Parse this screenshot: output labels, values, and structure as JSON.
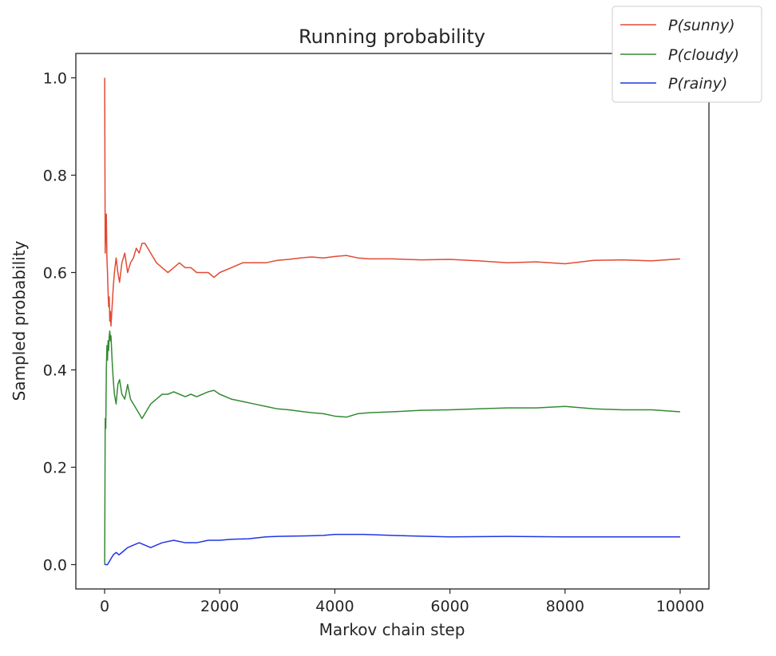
{
  "chart_data": {
    "type": "line",
    "title": "Running probability",
    "xlabel": "Markov chain step",
    "ylabel": "Sampled probability",
    "xlim": [
      -500,
      10500
    ],
    "ylim": [
      -0.05,
      1.05
    ],
    "xticks": [
      0,
      2000,
      4000,
      6000,
      8000,
      10000
    ],
    "xtick_labels": [
      "0",
      "2000",
      "4000",
      "6000",
      "8000",
      "10000"
    ],
    "yticks": [
      0.0,
      0.2,
      0.4,
      0.6,
      0.8,
      1.0
    ],
    "ytick_labels": [
      "0.0",
      "0.2",
      "0.4",
      "0.6",
      "0.8",
      "1.0"
    ],
    "grid": false,
    "legend_position": "top-right",
    "series": [
      {
        "name": "P(sunny)",
        "color": "#e24a33",
        "points": [
          [
            1,
            1.0
          ],
          [
            10,
            0.64
          ],
          [
            20,
            0.69
          ],
          [
            30,
            0.72
          ],
          [
            40,
            0.63
          ],
          [
            50,
            0.6
          ],
          [
            60,
            0.56
          ],
          [
            70,
            0.53
          ],
          [
            80,
            0.55
          ],
          [
            90,
            0.5
          ],
          [
            100,
            0.52
          ],
          [
            110,
            0.49
          ],
          [
            130,
            0.53
          ],
          [
            150,
            0.57
          ],
          [
            170,
            0.6
          ],
          [
            200,
            0.63
          ],
          [
            230,
            0.6
          ],
          [
            260,
            0.58
          ],
          [
            300,
            0.62
          ],
          [
            350,
            0.64
          ],
          [
            400,
            0.6
          ],
          [
            450,
            0.62
          ],
          [
            500,
            0.63
          ],
          [
            550,
            0.65
          ],
          [
            600,
            0.64
          ],
          [
            650,
            0.66
          ],
          [
            700,
            0.66
          ],
          [
            800,
            0.64
          ],
          [
            900,
            0.62
          ],
          [
            1000,
            0.61
          ],
          [
            1100,
            0.6
          ],
          [
            1200,
            0.61
          ],
          [
            1300,
            0.62
          ],
          [
            1400,
            0.61
          ],
          [
            1500,
            0.61
          ],
          [
            1600,
            0.6
          ],
          [
            1700,
            0.6
          ],
          [
            1800,
            0.6
          ],
          [
            1900,
            0.59
          ],
          [
            2000,
            0.6
          ],
          [
            2200,
            0.61
          ],
          [
            2400,
            0.62
          ],
          [
            2600,
            0.62
          ],
          [
            2800,
            0.62
          ],
          [
            3000,
            0.625
          ],
          [
            3200,
            0.627
          ],
          [
            3400,
            0.63
          ],
          [
            3600,
            0.632
          ],
          [
            3800,
            0.63
          ],
          [
            4000,
            0.633
          ],
          [
            4200,
            0.635
          ],
          [
            4400,
            0.63
          ],
          [
            4600,
            0.628
          ],
          [
            5000,
            0.628
          ],
          [
            5500,
            0.626
          ],
          [
            6000,
            0.627
          ],
          [
            6500,
            0.624
          ],
          [
            7000,
            0.62
          ],
          [
            7500,
            0.622
          ],
          [
            8000,
            0.618
          ],
          [
            8500,
            0.625
          ],
          [
            9000,
            0.626
          ],
          [
            9500,
            0.624
          ],
          [
            10000,
            0.628
          ]
        ]
      },
      {
        "name": "P(cloudy)",
        "color": "#348a34",
        "points": [
          [
            1,
            0.0
          ],
          [
            10,
            0.3
          ],
          [
            20,
            0.28
          ],
          [
            30,
            0.4
          ],
          [
            40,
            0.45
          ],
          [
            50,
            0.42
          ],
          [
            60,
            0.46
          ],
          [
            70,
            0.44
          ],
          [
            80,
            0.47
          ],
          [
            90,
            0.48
          ],
          [
            100,
            0.46
          ],
          [
            110,
            0.47
          ],
          [
            130,
            0.42
          ],
          [
            150,
            0.38
          ],
          [
            170,
            0.35
          ],
          [
            200,
            0.33
          ],
          [
            230,
            0.37
          ],
          [
            260,
            0.38
          ],
          [
            300,
            0.35
          ],
          [
            350,
            0.34
          ],
          [
            400,
            0.37
          ],
          [
            450,
            0.34
          ],
          [
            500,
            0.33
          ],
          [
            550,
            0.32
          ],
          [
            600,
            0.31
          ],
          [
            650,
            0.3
          ],
          [
            700,
            0.31
          ],
          [
            800,
            0.33
          ],
          [
            900,
            0.34
          ],
          [
            1000,
            0.35
          ],
          [
            1100,
            0.35
          ],
          [
            1200,
            0.355
          ],
          [
            1300,
            0.35
          ],
          [
            1400,
            0.345
          ],
          [
            1500,
            0.35
          ],
          [
            1600,
            0.345
          ],
          [
            1700,
            0.35
          ],
          [
            1800,
            0.355
          ],
          [
            1900,
            0.358
          ],
          [
            2000,
            0.35
          ],
          [
            2200,
            0.34
          ],
          [
            2400,
            0.335
          ],
          [
            2600,
            0.33
          ],
          [
            2800,
            0.325
          ],
          [
            3000,
            0.32
          ],
          [
            3200,
            0.318
          ],
          [
            3400,
            0.315
          ],
          [
            3600,
            0.312
          ],
          [
            3800,
            0.31
          ],
          [
            4000,
            0.305
          ],
          [
            4200,
            0.303
          ],
          [
            4400,
            0.31
          ],
          [
            4600,
            0.312
          ],
          [
            5000,
            0.314
          ],
          [
            5500,
            0.317
          ],
          [
            6000,
            0.318
          ],
          [
            6500,
            0.32
          ],
          [
            7000,
            0.322
          ],
          [
            7500,
            0.322
          ],
          [
            8000,
            0.325
          ],
          [
            8500,
            0.32
          ],
          [
            9000,
            0.318
          ],
          [
            9500,
            0.318
          ],
          [
            10000,
            0.314
          ]
        ]
      },
      {
        "name": "P(rainy)",
        "color": "#1f35e5",
        "points": [
          [
            1,
            0.0
          ],
          [
            50,
            0.0
          ],
          [
            100,
            0.01
          ],
          [
            150,
            0.02
          ],
          [
            200,
            0.025
          ],
          [
            250,
            0.02
          ],
          [
            300,
            0.025
          ],
          [
            400,
            0.035
          ],
          [
            500,
            0.04
          ],
          [
            600,
            0.045
          ],
          [
            700,
            0.04
          ],
          [
            800,
            0.035
          ],
          [
            900,
            0.04
          ],
          [
            1000,
            0.045
          ],
          [
            1200,
            0.05
          ],
          [
            1400,
            0.045
          ],
          [
            1600,
            0.045
          ],
          [
            1800,
            0.05
          ],
          [
            2000,
            0.05
          ],
          [
            2200,
            0.052
          ],
          [
            2500,
            0.053
          ],
          [
            2800,
            0.057
          ],
          [
            3000,
            0.058
          ],
          [
            3500,
            0.059
          ],
          [
            3800,
            0.06
          ],
          [
            4000,
            0.062
          ],
          [
            4500,
            0.062
          ],
          [
            5000,
            0.06
          ],
          [
            6000,
            0.057
          ],
          [
            7000,
            0.058
          ],
          [
            8000,
            0.057
          ],
          [
            9000,
            0.057
          ],
          [
            10000,
            0.057
          ]
        ]
      }
    ]
  }
}
